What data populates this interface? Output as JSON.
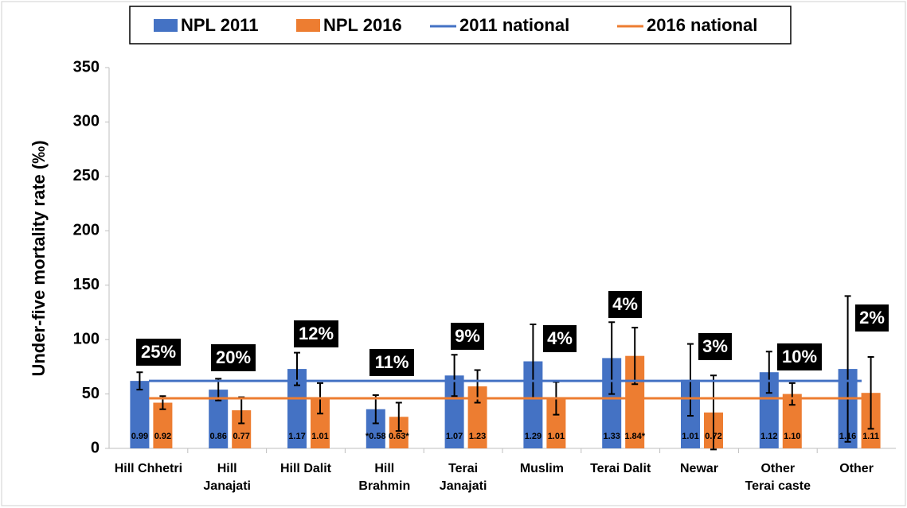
{
  "chart_data": {
    "type": "bar",
    "y_label": "Under-five mortality rate (‰)",
    "categories": [
      "Hill Chhetri",
      "Hill\nJanajati",
      "Hill Dalit",
      "Hill\nBrahmin",
      "Terai\nJanajati",
      "Muslim",
      "Terai Dalit",
      "Newar",
      "Other\nTerai caste",
      "Other"
    ],
    "series": [
      {
        "name": "NPL 2011",
        "color": "#4472c4",
        "values": [
          62,
          54,
          73,
          36,
          67,
          80,
          83,
          63,
          70,
          73
        ],
        "errors": [
          8,
          10,
          15,
          13,
          19,
          34,
          33,
          33,
          19,
          67
        ],
        "ratio_labels": [
          "0.99",
          "0.86",
          "1.17",
          "*0.58",
          "1.07",
          "1.29",
          "1.33",
          "1.01",
          "1.12",
          "1.16"
        ]
      },
      {
        "name": "NPL 2016",
        "color": "#ed7d31",
        "values": [
          42,
          35,
          46,
          29,
          57,
          46,
          85,
          33,
          50,
          51
        ],
        "errors": [
          6,
          12,
          14,
          13,
          15,
          15,
          26,
          34,
          10,
          33
        ],
        "ratio_labels": [
          "0.92",
          "0.77",
          "1.01",
          "0.63*",
          "1.23",
          "1.01",
          "1.84*",
          "0.72",
          "1.10",
          "1.11"
        ]
      }
    ],
    "reference_lines": [
      {
        "name": "2011 national",
        "color": "#4472c4",
        "value": 62
      },
      {
        "name": "2016 national",
        "color": "#ed7d31",
        "value": 46
      }
    ],
    "annotations": [
      "25%",
      "20%",
      "12%",
      "11%",
      "9%",
      "4%",
      "4%",
      "3%",
      "10%",
      "2%"
    ],
    "ylim": [
      0,
      350
    ],
    "yticks": [
      0,
      50,
      100,
      150,
      200,
      250,
      300,
      350
    ],
    "grid": false
  }
}
